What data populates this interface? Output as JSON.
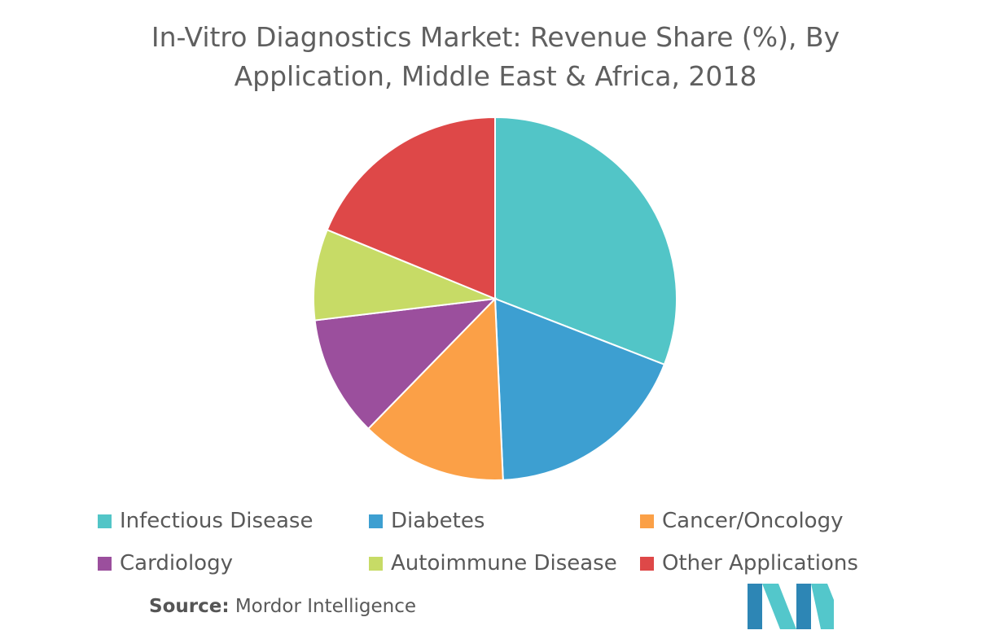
{
  "title_lines": [
    "In-Vitro Diagnostics Market: Revenue Share (%), By",
    "Application, Middle East & Africa, 2018"
  ],
  "chart_data": {
    "type": "pie",
    "title": "In-Vitro Diagnostics Market: Revenue Share (%), By Application, Middle East & Africa, 2018",
    "categories": [
      "Infectious Disease",
      "Diabetes",
      "Cancer/Oncology",
      "Cardiology",
      "Autoimmune Disease",
      "Other Applications"
    ],
    "values": [
      30.9,
      18.4,
      13.0,
      10.8,
      8.1,
      18.8
    ],
    "colors": [
      "#52c5c7",
      "#3d9fd1",
      "#fba047",
      "#9b4f9d",
      "#c7db66",
      "#de4848"
    ],
    "legend_placement": "bottom",
    "start": "top",
    "direction": "clockwise"
  },
  "source": {
    "label": "Source:",
    "text": "Mordor Intelligence"
  },
  "logo": {
    "colors": [
      "#2d86b5",
      "#53c7cb"
    ]
  }
}
